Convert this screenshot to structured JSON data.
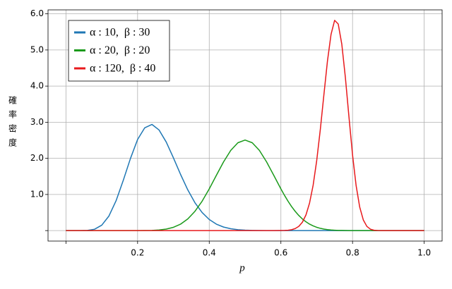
{
  "chart_data": {
    "type": "line",
    "xlabel": "p",
    "ylabel": "確率密度",
    "x": [
      0,
      0.02,
      0.04,
      0.06,
      0.08,
      0.1,
      0.12,
      0.14,
      0.16,
      0.18,
      0.2,
      0.22,
      0.24,
      0.26,
      0.28,
      0.3,
      0.32,
      0.34,
      0.36,
      0.38,
      0.4,
      0.42,
      0.44,
      0.46,
      0.48,
      0.5,
      0.52,
      0.54,
      0.56,
      0.58,
      0.6,
      0.61,
      0.62,
      0.63,
      0.64,
      0.65,
      0.66,
      0.67,
      0.68,
      0.69,
      0.7,
      0.71,
      0.72,
      0.73,
      0.74,
      0.75,
      0.76,
      0.77,
      0.78,
      0.79,
      0.8,
      0.81,
      0.82,
      0.83,
      0.84,
      0.85,
      0.86,
      0.87,
      0.88,
      0.89,
      0.9,
      0.92,
      0.94,
      0.96,
      0.98,
      1
    ],
    "series": [
      {
        "name": "α : 10,  β : 30",
        "color": "#1f77b4",
        "values": [
          0,
          0,
          0,
          0.005,
          0.038,
          0.15,
          0.403,
          0.828,
          1.39,
          1.994,
          2.522,
          2.846,
          2.939,
          2.784,
          2.45,
          2.014,
          1.554,
          1.129,
          0.773,
          0.502,
          0.307,
          0.178,
          0.098,
          0.051,
          0.025,
          0.012,
          0.005,
          0.002,
          0.001,
          0,
          0,
          0,
          0,
          0,
          0,
          0,
          0,
          0,
          0,
          0,
          0,
          0,
          0,
          0,
          0,
          0,
          0,
          0,
          0,
          0,
          0,
          0,
          0,
          0,
          0,
          0,
          0,
          0,
          0,
          0,
          0,
          0,
          0,
          0,
          0,
          0
        ]
      },
      {
        "name": "α : 20,  β : 20",
        "color": "#1a9a1a",
        "values": [
          0,
          0,
          0,
          0,
          0,
          0,
          0,
          0,
          0,
          0,
          0.001,
          0.002,
          0.006,
          0.017,
          0.042,
          0.091,
          0.179,
          0.322,
          0.532,
          0.812,
          1.154,
          1.532,
          1.903,
          2.219,
          2.432,
          2.507,
          2.432,
          2.219,
          1.903,
          1.532,
          1.154,
          0.977,
          0.812,
          0.663,
          0.532,
          0.418,
          0.322,
          0.243,
          0.179,
          0.13,
          0.091,
          0.063,
          0.042,
          0.027,
          0.017,
          0.011,
          0.006,
          0.004,
          0.002,
          0.001,
          0.001,
          0,
          0,
          0,
          0,
          0,
          0,
          0,
          0,
          0,
          0,
          0,
          0,
          0,
          0,
          0
        ]
      },
      {
        "name": "α : 120,  β : 40",
        "color": "#e8191c",
        "values": [
          0,
          0,
          0,
          0,
          0,
          0,
          0,
          0,
          0,
          0,
          0,
          0,
          0,
          0,
          0,
          0,
          0,
          0,
          0,
          0,
          0,
          0,
          0,
          0,
          0,
          0,
          0,
          0,
          0,
          0,
          0.002,
          0.004,
          0.01,
          0.025,
          0.056,
          0.117,
          0.232,
          0.434,
          0.763,
          1.257,
          1.94,
          2.795,
          3.757,
          4.696,
          5.434,
          5.82,
          5.72,
          5.16,
          4.236,
          3.145,
          2.095,
          1.243,
          0.65,
          0.296,
          0.116,
          0.038,
          0.01,
          0.002,
          0,
          0,
          0,
          0,
          0,
          0,
          0,
          0
        ]
      }
    ],
    "xlim": [
      -0.05,
      1.05
    ],
    "ylim": [
      -0.29,
      6.11
    ],
    "xticks": [
      {
        "value": 0
      },
      0.2,
      0.4,
      0.6,
      0.8,
      {
        "value": 1,
        "label": "1.0"
      }
    ],
    "yticks": [
      {
        "value": 0
      },
      {
        "value": 1,
        "label": "1.0"
      },
      {
        "value": 2,
        "label": "2.0"
      },
      {
        "value": 3,
        "label": "3.0"
      },
      {
        "value": 4,
        "label": "4.0"
      },
      {
        "value": 5,
        "label": "5.0"
      },
      {
        "value": 6,
        "label": "6.0"
      }
    ],
    "grid": true,
    "legend": "upper left"
  }
}
